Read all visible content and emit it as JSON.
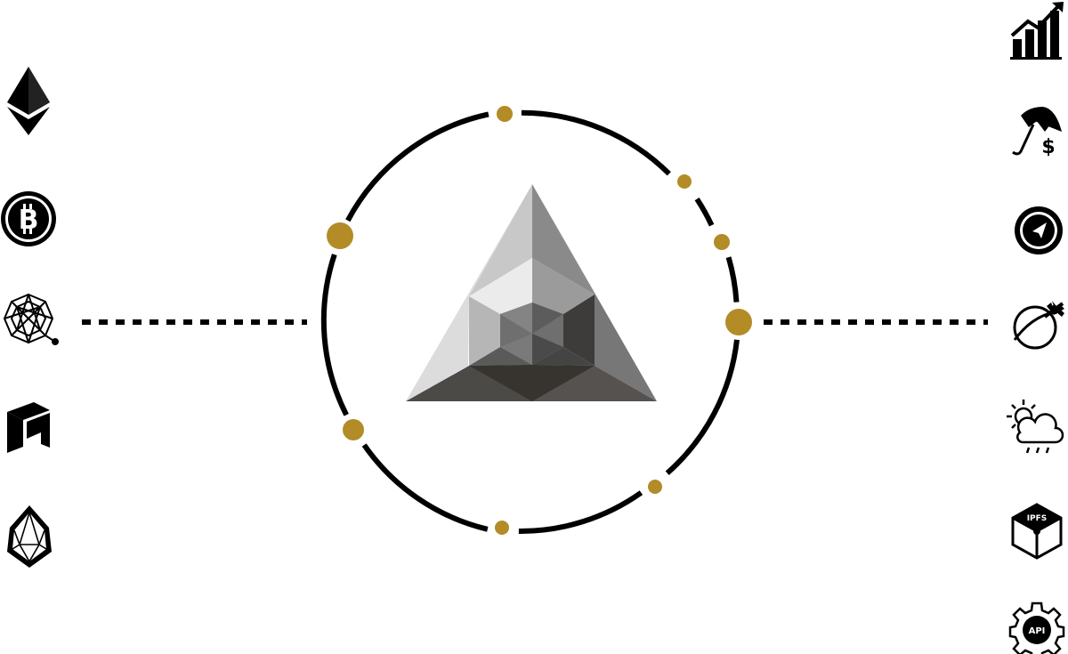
{
  "diagram": {
    "colors": {
      "ink": "#000000",
      "gold": "#b38b27",
      "background": "#ffffff"
    },
    "center": {
      "icon": "faceted-triangle-logo-icon"
    },
    "left_icons": [
      {
        "name": "ethereum-icon"
      },
      {
        "name": "bitcoin-icon"
      },
      {
        "name": "qtum-icon"
      },
      {
        "name": "neo-icon"
      },
      {
        "name": "eos-icon"
      }
    ],
    "right_icons": [
      {
        "name": "bar-chart-growth-icon"
      },
      {
        "name": "umbrella-dollar-icon"
      },
      {
        "name": "compass-icon"
      },
      {
        "name": "flight-icon"
      },
      {
        "name": "weather-icon"
      },
      {
        "name": "ipfs-cube-icon",
        "label": "IPFS"
      },
      {
        "name": "api-gear-icon",
        "label": "API"
      }
    ]
  }
}
